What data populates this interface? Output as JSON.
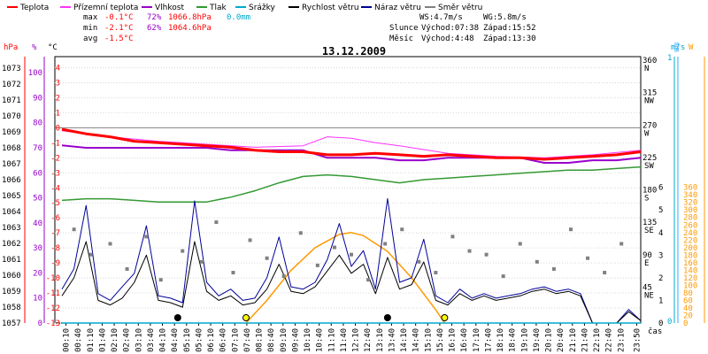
{
  "title": "13.12.2009",
  "legend": [
    {
      "label": "Teplota",
      "color": "#ff0000"
    },
    {
      "label": "Přízemní teplota",
      "color": "#ff33ff"
    },
    {
      "label": "Vlhkost",
      "color": "#9900cc"
    },
    {
      "label": "Tlak",
      "color": "#339933"
    },
    {
      "label": "Srážky",
      "color": "#00aacc"
    },
    {
      "label": "Rychlost větru",
      "color": "#000000"
    },
    {
      "label": "Náraz větru",
      "color": "#000099"
    },
    {
      "label": "Směr větru",
      "color": "#808080"
    }
  ],
  "stats": {
    "max": {
      "label": "max",
      "temp": "-0.1°C",
      "hum": "72%",
      "press": "1066.8hPa",
      "rain": "0.0mm"
    },
    "min": {
      "label": "min",
      "temp": "-2.1°C",
      "hum": "62%",
      "press": "1064.6hPa"
    },
    "avg": {
      "label": "avg",
      "temp": "-1.5°C"
    }
  },
  "wind_info": {
    "ws": "WS:4.7m/s",
    "wg": "WG:5.8m/s"
  },
  "sun": {
    "label": "Slunce",
    "rise": "Východ:07:38",
    "set": "Západ:15:52"
  },
  "moon": {
    "label": "Měsíc",
    "rise": "Východ:4:48",
    "set": "Západ:13:30"
  },
  "axis_units": {
    "hpa": "hPa",
    "pct": "%",
    "degc": "°C",
    "ms": "m/s",
    "mm": "mm",
    "w": "W",
    "cas": "čas"
  },
  "colors": {
    "temp": "#ff0000",
    "ground": "#ff33ff",
    "hum": "#9900cc",
    "press": "#339933",
    "rain": "#00aacc",
    "wind": "#000000",
    "gust": "#000099",
    "dir": "#808080",
    "sun": "#ff9900",
    "mmaxis": "#33aaff"
  },
  "chart_data": {
    "type": "line",
    "title": "13.12.2009",
    "x_labels": [
      "00:10",
      "00:40",
      "01:10",
      "01:40",
      "02:10",
      "02:40",
      "03:10",
      "03:40",
      "04:10",
      "04:40",
      "05:10",
      "05:40",
      "06:10",
      "06:40",
      "07:10",
      "07:40",
      "08:10",
      "08:40",
      "09:10",
      "09:40",
      "10:10",
      "10:40",
      "11:10",
      "11:40",
      "12:10",
      "12:40",
      "13:10",
      "13:40",
      "14:10",
      "14:40",
      "15:10",
      "15:40",
      "16:10",
      "16:40",
      "17:10",
      "17:40",
      "18:10",
      "18:40",
      "19:10",
      "19:40",
      "20:10",
      "20:40",
      "21:10",
      "21:40",
      "22:10",
      "22:40",
      "23:10",
      "23:50"
    ],
    "xlabel": "čas",
    "axes": {
      "pressure_hpa": {
        "ticks": [
          1057,
          1058,
          1059,
          1060,
          1061,
          1062,
          1063,
          1064,
          1065,
          1066,
          1067,
          1068,
          1069,
          1070,
          1071,
          1072,
          1073
        ],
        "range": [
          1057,
          1073.5
        ]
      },
      "humidity_pct": {
        "ticks": [
          0,
          10,
          20,
          30,
          40,
          50,
          60,
          70,
          80,
          90,
          100
        ],
        "range": [
          0,
          105
        ]
      },
      "temperature_c": {
        "ticks": [
          4,
          3,
          2,
          1,
          0,
          -1,
          -2,
          -3,
          -4,
          -5,
          -6,
          -7,
          -8,
          -9,
          -10,
          -11,
          -12,
          -13
        ],
        "range": [
          -13,
          4.5
        ]
      },
      "direction_labels": [
        {
          "deg": 360,
          "label": "N"
        },
        {
          "deg": 315,
          "label": "NW"
        },
        {
          "deg": 270,
          "label": "W"
        },
        {
          "deg": 225,
          "label": "SW"
        },
        {
          "deg": 180,
          "label": "S"
        },
        {
          "deg": 135,
          "label": "SE"
        },
        {
          "deg": 90,
          "label": "E"
        },
        {
          "deg": 45,
          "label": "NE"
        }
      ],
      "wind_ms": {
        "ticks": [
          0,
          1,
          2,
          3,
          4,
          5,
          6
        ],
        "range": [
          0,
          6.3
        ]
      },
      "rain_mm": {
        "ticks": [
          0,
          1
        ],
        "range": [
          0,
          1
        ]
      },
      "solar_w": {
        "ticks": [
          0,
          20,
          40,
          60,
          80,
          100,
          120,
          140,
          160,
          180,
          200,
          220,
          240,
          260,
          280,
          300,
          320,
          340,
          360
        ],
        "range": [
          0,
          378
        ]
      }
    },
    "series": [
      {
        "name": "Teplota",
        "unit": "°C",
        "x": [
          0,
          1,
          2,
          3,
          4,
          5,
          6,
          7,
          8,
          9,
          10,
          11,
          12,
          13,
          14,
          15,
          16,
          17,
          18,
          19,
          20,
          21,
          22,
          23,
          24
        ],
        "y": [
          -0.1,
          -0.4,
          -0.6,
          -0.9,
          -1.0,
          -1.1,
          -1.2,
          -1.3,
          -1.5,
          -1.6,
          -1.6,
          -1.8,
          -1.8,
          -1.7,
          -1.8,
          -1.9,
          -1.8,
          -1.9,
          -2.0,
          -2.0,
          -2.1,
          -2.0,
          -1.9,
          -1.8,
          -1.6
        ]
      },
      {
        "name": "Přízemní teplota",
        "unit": "°C",
        "x": [
          0,
          2,
          4,
          6,
          8,
          10,
          11,
          12,
          13,
          14,
          16,
          18,
          20,
          22,
          24
        ],
        "y": [
          -0.2,
          -0.6,
          -0.9,
          -1.1,
          -1.3,
          -1.2,
          -0.6,
          -0.7,
          -1.0,
          -1.2,
          -1.7,
          -1.9,
          -2.0,
          -1.8,
          -1.5
        ]
      },
      {
        "name": "Vlhkost",
        "unit": "%",
        "x": [
          0,
          1,
          2,
          3,
          4,
          5,
          6,
          7,
          8,
          9,
          10,
          11,
          12,
          13,
          14,
          15,
          16,
          17,
          18,
          19,
          20,
          21,
          22,
          23,
          24
        ],
        "y": [
          71,
          70,
          70,
          70,
          70,
          70,
          70,
          69,
          69,
          69,
          69,
          66,
          66,
          66,
          65,
          65,
          66,
          66,
          66,
          66,
          64,
          64,
          65,
          65,
          66
        ]
      },
      {
        "name": "Tlak",
        "unit": "hPa",
        "x": [
          0,
          1,
          2,
          3,
          4,
          5,
          6,
          7,
          8,
          9,
          10,
          11,
          12,
          13,
          14,
          15,
          16,
          17,
          18,
          19,
          20,
          21,
          22,
          23,
          24
        ],
        "y": [
          1064.7,
          1064.8,
          1064.8,
          1064.7,
          1064.6,
          1064.6,
          1064.6,
          1064.9,
          1065.3,
          1065.8,
          1066.2,
          1066.3,
          1066.2,
          1066.0,
          1065.8,
          1066.0,
          1066.1,
          1066.2,
          1066.3,
          1066.4,
          1066.5,
          1066.6,
          1066.6,
          1066.7,
          1066.8
        ]
      },
      {
        "name": "Rychlost větru",
        "unit": "m/s",
        "x": [
          0,
          0.5,
          1,
          1.5,
          2,
          2.5,
          3,
          3.5,
          4,
          4.5,
          5,
          5.5,
          6,
          6.5,
          7,
          7.5,
          8,
          8.5,
          9,
          9.5,
          10,
          10.5,
          11,
          11.5,
          12,
          12.5,
          13,
          13.5,
          14,
          14.5,
          15,
          15.5,
          16,
          16.5,
          17,
          17.5,
          18,
          18.5,
          19,
          19.5,
          20,
          20.5,
          21,
          21.5,
          22,
          22.5,
          23,
          23.5,
          24
        ],
        "y": [
          1.2,
          2.0,
          3.6,
          1.0,
          0.8,
          1.1,
          1.8,
          3.0,
          1.0,
          0.9,
          0.7,
          3.6,
          1.4,
          1.0,
          1.2,
          0.8,
          0.9,
          1.5,
          2.6,
          1.4,
          1.3,
          1.6,
          2.3,
          3.0,
          2.2,
          2.6,
          1.3,
          2.9,
          1.5,
          1.7,
          2.7,
          1.0,
          0.8,
          1.3,
          1.0,
          1.2,
          1.0,
          1.1,
          1.2,
          1.4,
          1.5,
          1.3,
          1.4,
          1.2,
          0.0,
          0.0,
          0.0,
          0.5,
          0.1
        ]
      },
      {
        "name": "Náraz větru",
        "unit": "m/s",
        "x": [
          0,
          0.5,
          1,
          1.5,
          2,
          2.5,
          3,
          3.5,
          4,
          4.5,
          5,
          5.5,
          6,
          6.5,
          7,
          7.5,
          8,
          8.5,
          9,
          9.5,
          10,
          10.5,
          11,
          11.5,
          12,
          12.5,
          13,
          13.5,
          14,
          14.5,
          15,
          15.5,
          16,
          16.5,
          17,
          17.5,
          18,
          18.5,
          19,
          19.5,
          20,
          20.5,
          21,
          21.5,
          22,
          22.5,
          23,
          23.5,
          24
        ],
        "y": [
          1.5,
          2.4,
          5.2,
          1.3,
          1.0,
          1.6,
          2.2,
          4.3,
          1.2,
          1.1,
          0.9,
          5.4,
          1.8,
          1.2,
          1.5,
          1.0,
          1.1,
          2.0,
          3.8,
          1.6,
          1.5,
          1.8,
          2.8,
          4.4,
          2.5,
          3.2,
          1.5,
          5.5,
          1.8,
          2.0,
          3.7,
          1.2,
          0.9,
          1.5,
          1.1,
          1.3,
          1.1,
          1.2,
          1.3,
          1.5,
          1.6,
          1.4,
          1.5,
          1.3,
          0.0,
          0.0,
          0.0,
          0.6,
          0.1
        ]
      },
      {
        "name": "Směr větru",
        "unit": "°",
        "x": [
          0.5,
          1.2,
          2.0,
          2.7,
          3.5,
          4.1,
          5.0,
          5.8,
          6.4,
          7.1,
          7.8,
          8.5,
          9.2,
          9.9,
          10.6,
          11.3,
          12.0,
          12.7,
          13.4,
          14.1,
          14.8,
          15.5,
          16.2,
          16.9,
          17.6,
          18.3,
          19.0,
          19.7,
          20.4,
          21.1,
          21.8,
          22.5,
          23.2
        ],
        "y": [
          130,
          95,
          110,
          75,
          120,
          60,
          100,
          85,
          140,
          70,
          115,
          90,
          65,
          125,
          80,
          105,
          95,
          60,
          110,
          130,
          85,
          70,
          120,
          100,
          95,
          65,
          110,
          85,
          75,
          130,
          90,
          70,
          110
        ]
      },
      {
        "name": "Sluneční záření",
        "unit": "W",
        "x": [
          7.63,
          8.5,
          9.5,
          10.5,
          11.5,
          12.0,
          12.5,
          13.5,
          14.5,
          15.5,
          15.87
        ],
        "y": [
          0,
          60,
          140,
          200,
          235,
          240,
          232,
          190,
          120,
          35,
          0
        ]
      },
      {
        "name": "Srážky",
        "unit": "mm",
        "x": [
          0,
          24
        ],
        "y": [
          0.0,
          0.0
        ]
      }
    ]
  }
}
